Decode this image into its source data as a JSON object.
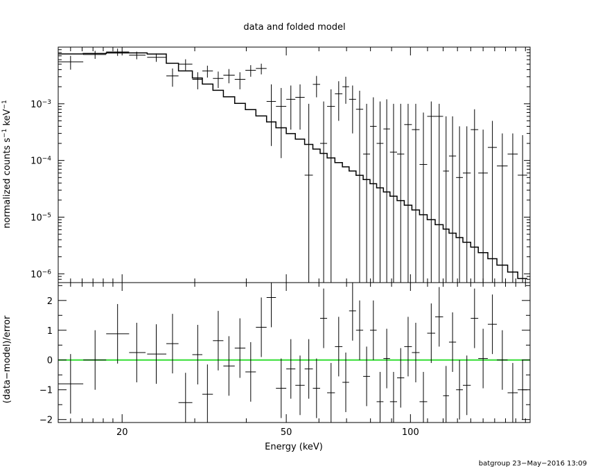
{
  "chart_data": [
    {
      "panel": "top",
      "type": "line",
      "title": "data and folded model",
      "ylabel": "normalized counts s^-1 keV^-1",
      "yscale": "log",
      "xscale": "log",
      "xlim": [
        14,
        195
      ],
      "ylim": [
        7e-07,
        0.01
      ],
      "yticks": [
        1e-06,
        1e-05,
        0.0001,
        0.001
      ],
      "ytick_labels": [
        {
          "base": "10",
          "exp": "−6"
        },
        {
          "base": "10",
          "exp": "−5"
        },
        {
          "base": "10",
          "exp": "−4"
        },
        {
          "base": "10",
          "exp": "−3"
        }
      ],
      "data_points": [
        {
          "x": 15.0,
          "xlo": 14.0,
          "xhi": 16.1,
          "y": 0.0055,
          "ylo": 0.004,
          "yhi": 0.007
        },
        {
          "x": 17.2,
          "xlo": 16.1,
          "xhi": 18.3,
          "y": 0.0074,
          "ylo": 0.0062,
          "yhi": 0.0086
        },
        {
          "x": 19.5,
          "xlo": 18.3,
          "xhi": 20.8,
          "y": 0.0082,
          "ylo": 0.007,
          "yhi": 0.0094
        },
        {
          "x": 21.7,
          "xlo": 20.8,
          "xhi": 22.8,
          "y": 0.0072,
          "ylo": 0.0061,
          "yhi": 0.0083
        },
        {
          "x": 24.2,
          "xlo": 23.0,
          "xhi": 25.6,
          "y": 0.0066,
          "ylo": 0.0055,
          "yhi": 0.0077
        },
        {
          "x": 26.5,
          "xlo": 25.6,
          "xhi": 27.4,
          "y": 0.0031,
          "ylo": 0.002,
          "yhi": 0.0042
        },
        {
          "x": 28.5,
          "xlo": 27.4,
          "xhi": 29.6,
          "y": 0.005,
          "ylo": 0.0039,
          "yhi": 0.0061
        },
        {
          "x": 30.5,
          "xlo": 29.6,
          "xhi": 31.3,
          "y": 0.0027,
          "ylo": 0.0018,
          "yhi": 0.0036
        },
        {
          "x": 32.2,
          "xlo": 31.3,
          "xhi": 33.2,
          "y": 0.0038,
          "ylo": 0.0029,
          "yhi": 0.0047
        },
        {
          "x": 34.2,
          "xlo": 33.2,
          "xhi": 35.2,
          "y": 0.0028,
          "ylo": 0.0019,
          "yhi": 0.0037
        },
        {
          "x": 36.3,
          "xlo": 35.2,
          "xhi": 37.5,
          "y": 0.0032,
          "ylo": 0.0023,
          "yhi": 0.0041
        },
        {
          "x": 38.6,
          "xlo": 37.5,
          "xhi": 39.8,
          "y": 0.0027,
          "ylo": 0.0018,
          "yhi": 0.0036
        },
        {
          "x": 41.0,
          "xlo": 39.8,
          "xhi": 42.2,
          "y": 0.0039,
          "ylo": 0.003,
          "yhi": 0.0048
        },
        {
          "x": 43.5,
          "xlo": 42.2,
          "xhi": 44.8,
          "y": 0.0042,
          "ylo": 0.0033,
          "yhi": 0.0051
        },
        {
          "x": 46.0,
          "xlo": 44.8,
          "xhi": 47.2,
          "y": 0.0011,
          "ylo": 0.00018,
          "yhi": 0.0022
        },
        {
          "x": 48.6,
          "xlo": 47.2,
          "xhi": 50.0,
          "y": 0.0009,
          "ylo": 0.00011,
          "yhi": 0.0019
        },
        {
          "x": 51.3,
          "xlo": 50.0,
          "xhi": 52.6,
          "y": 0.0012,
          "ylo": 0.00035,
          "yhi": 0.0021
        },
        {
          "x": 54.0,
          "xlo": 52.6,
          "xhi": 55.4,
          "y": 0.0013,
          "ylo": 0.00035,
          "yhi": 0.0022
        },
        {
          "x": 56.7,
          "xlo": 55.4,
          "xhi": 58.0,
          "y": 5.5e-05,
          "ylo": 7e-07,
          "yhi": 0.001
        },
        {
          "x": 59.2,
          "xlo": 58.0,
          "xhi": 60.4,
          "y": 0.0022,
          "ylo": 0.0013,
          "yhi": 0.0031
        },
        {
          "x": 61.6,
          "xlo": 60.4,
          "xhi": 62.8,
          "y": 0.0002,
          "ylo": 7e-07,
          "yhi": 0.0011
        },
        {
          "x": 64.2,
          "xlo": 62.8,
          "xhi": 65.6,
          "y": 0.0009,
          "ylo": 7e-07,
          "yhi": 0.0018
        },
        {
          "x": 67.0,
          "xlo": 65.6,
          "xhi": 68.4,
          "y": 0.0015,
          "ylo": 0.0005,
          "yhi": 0.0025
        },
        {
          "x": 69.7,
          "xlo": 68.4,
          "xhi": 71.0,
          "y": 0.002,
          "ylo": 0.001,
          "yhi": 0.003
        },
        {
          "x": 72.4,
          "xlo": 71.0,
          "xhi": 73.8,
          "y": 0.0012,
          "ylo": 0.0003,
          "yhi": 0.0021
        },
        {
          "x": 75.3,
          "xlo": 73.8,
          "xhi": 76.8,
          "y": 0.0008,
          "ylo": 7e-07,
          "yhi": 0.0017
        },
        {
          "x": 78.3,
          "xlo": 76.8,
          "xhi": 79.8,
          "y": 0.00013,
          "ylo": 7e-07,
          "yhi": 0.001
        },
        {
          "x": 81.3,
          "xlo": 79.8,
          "xhi": 82.8,
          "y": 0.0004,
          "ylo": 7e-07,
          "yhi": 0.0013
        },
        {
          "x": 84.4,
          "xlo": 82.8,
          "xhi": 86.0,
          "y": 0.0002,
          "ylo": 7e-07,
          "yhi": 0.0011
        },
        {
          "x": 87.6,
          "xlo": 86.0,
          "xhi": 89.2,
          "y": 0.00036,
          "ylo": 7e-07,
          "yhi": 0.0012
        },
        {
          "x": 91.0,
          "xlo": 89.2,
          "xhi": 92.8,
          "y": 0.00014,
          "ylo": 7e-07,
          "yhi": 0.001
        },
        {
          "x": 94.7,
          "xlo": 92.8,
          "xhi": 96.6,
          "y": 0.00013,
          "ylo": 7e-07,
          "yhi": 0.001
        },
        {
          "x": 98.7,
          "xlo": 96.6,
          "xhi": 100.8,
          "y": 0.00043,
          "ylo": 7e-07,
          "yhi": 0.001
        },
        {
          "x": 103.0,
          "xlo": 100.8,
          "xhi": 105.2,
          "y": 0.00035,
          "ylo": 7e-07,
          "yhi": 0.001
        },
        {
          "x": 107.5,
          "xlo": 105.2,
          "xhi": 109.8,
          "y": 8.5e-05,
          "ylo": 7e-07,
          "yhi": 0.0007
        },
        {
          "x": 112.3,
          "xlo": 109.8,
          "xhi": 114.8,
          "y": 0.0006,
          "ylo": 7e-07,
          "yhi": 0.0011
        },
        {
          "x": 117.4,
          "xlo": 114.8,
          "xhi": 120.0,
          "y": 0.0006,
          "ylo": 7e-07,
          "yhi": 0.001
        },
        {
          "x": 122.0,
          "xlo": 120.0,
          "xhi": 124.0,
          "y": 6.5e-05,
          "ylo": 7e-07,
          "yhi": 0.0006
        },
        {
          "x": 126.5,
          "xlo": 124.0,
          "xhi": 129.0,
          "y": 0.00012,
          "ylo": 7e-07,
          "yhi": 0.0006
        },
        {
          "x": 131.5,
          "xlo": 129.0,
          "xhi": 134.0,
          "y": 5e-05,
          "ylo": 7e-07,
          "yhi": 0.0004
        },
        {
          "x": 137.0,
          "xlo": 134.0,
          "xhi": 140.0,
          "y": 6e-05,
          "ylo": 7e-07,
          "yhi": 0.0004
        },
        {
          "x": 143.0,
          "xlo": 140.0,
          "xhi": 146.0,
          "y": 0.00035,
          "ylo": 7e-07,
          "yhi": 0.0008
        },
        {
          "x": 150.0,
          "xlo": 146.0,
          "xhi": 154.0,
          "y": 6e-05,
          "ylo": 7e-07,
          "yhi": 0.00035
        },
        {
          "x": 158.0,
          "xlo": 154.0,
          "xhi": 162.0,
          "y": 0.00017,
          "ylo": 7e-07,
          "yhi": 0.0005
        },
        {
          "x": 167.0,
          "xlo": 162.0,
          "xhi": 172.0,
          "y": 8e-05,
          "ylo": 7e-07,
          "yhi": 0.0003
        },
        {
          "x": 177.0,
          "xlo": 172.0,
          "xhi": 182.0,
          "y": 0.00013,
          "ylo": 7e-07,
          "yhi": 0.0003
        },
        {
          "x": 187.0,
          "xlo": 182.0,
          "xhi": 192.0,
          "y": 5.5e-05,
          "ylo": 7e-07,
          "yhi": 0.00028
        }
      ],
      "model": {
        "norm_at_20keV": 0.0079,
        "peak_keV": 19.5,
        "low_index": 0.5,
        "high_index": 4.2,
        "cutoff_keV": 24.0
      }
    },
    {
      "panel": "bottom",
      "type": "scatter",
      "xlabel": "Energy (keV)",
      "ylabel": "(data−model)/error",
      "xscale": "log",
      "xlim": [
        14,
        195
      ],
      "ylim": [
        -2.1,
        2.6
      ],
      "yticks": [
        -2,
        -1,
        0,
        1,
        2
      ],
      "ytick_labels": [
        "−2",
        "−1",
        "0",
        "1",
        "2"
      ],
      "xticks": [
        20,
        50,
        100
      ],
      "xtick_labels": [
        "20",
        "50",
        "100"
      ],
      "zero_line_color": "#33dd33",
      "residuals": [
        {
          "x": 15.0,
          "xlo": 14.0,
          "xhi": 16.1,
          "y": -0.8
        },
        {
          "x": 17.2,
          "xlo": 16.1,
          "xhi": 18.3,
          "y": 0.0
        },
        {
          "x": 19.5,
          "xlo": 18.3,
          "xhi": 20.8,
          "y": 0.88
        },
        {
          "x": 21.7,
          "xlo": 20.8,
          "xhi": 22.8,
          "y": 0.25
        },
        {
          "x": 24.2,
          "xlo": 23.0,
          "xhi": 25.6,
          "y": 0.2
        },
        {
          "x": 26.5,
          "xlo": 25.6,
          "xhi": 27.4,
          "y": 0.55
        },
        {
          "x": 28.5,
          "xlo": 27.4,
          "xhi": 29.6,
          "y": -1.43
        },
        {
          "x": 30.5,
          "xlo": 29.6,
          "xhi": 31.3,
          "y": 0.18
        },
        {
          "x": 32.2,
          "xlo": 31.3,
          "xhi": 33.2,
          "y": -1.15
        },
        {
          "x": 34.2,
          "xlo": 33.2,
          "xhi": 35.2,
          "y": 0.65
        },
        {
          "x": 36.3,
          "xlo": 35.2,
          "xhi": 37.5,
          "y": -0.2
        },
        {
          "x": 38.6,
          "xlo": 37.5,
          "xhi": 39.8,
          "y": 0.4
        },
        {
          "x": 41.0,
          "xlo": 39.8,
          "xhi": 42.2,
          "y": -0.4
        },
        {
          "x": 43.5,
          "xlo": 42.2,
          "xhi": 44.8,
          "y": 1.1
        },
        {
          "x": 46.0,
          "xlo": 44.8,
          "xhi": 47.2,
          "y": 2.1
        },
        {
          "x": 48.6,
          "xlo": 47.2,
          "xhi": 50.0,
          "y": -0.95
        },
        {
          "x": 51.3,
          "xlo": 50.0,
          "xhi": 52.6,
          "y": -0.3
        },
        {
          "x": 54.0,
          "xlo": 52.6,
          "xhi": 55.4,
          "y": -0.85
        },
        {
          "x": 56.7,
          "xlo": 55.4,
          "xhi": 58.0,
          "y": -0.3
        },
        {
          "x": 59.2,
          "xlo": 58.0,
          "xhi": 60.4,
          "y": -0.95
        },
        {
          "x": 61.6,
          "xlo": 60.4,
          "xhi": 62.8,
          "y": 1.4
        },
        {
          "x": 64.2,
          "xlo": 62.8,
          "xhi": 65.6,
          "y": -1.1
        },
        {
          "x": 67.0,
          "xlo": 65.6,
          "xhi": 68.4,
          "y": 0.45
        },
        {
          "x": 69.7,
          "xlo": 68.4,
          "xhi": 71.0,
          "y": -0.75
        },
        {
          "x": 72.4,
          "xlo": 71.0,
          "xhi": 73.8,
          "y": 1.65
        },
        {
          "x": 75.3,
          "xlo": 73.8,
          "xhi": 76.8,
          "y": 1.0
        },
        {
          "x": 78.3,
          "xlo": 76.8,
          "xhi": 79.8,
          "y": -0.55
        },
        {
          "x": 81.3,
          "xlo": 79.8,
          "xhi": 82.8,
          "y": 1.0
        },
        {
          "x": 84.4,
          "xlo": 82.8,
          "xhi": 86.0,
          "y": -1.4
        },
        {
          "x": 87.6,
          "xlo": 86.0,
          "xhi": 89.2,
          "y": 0.05
        },
        {
          "x": 91.0,
          "xlo": 89.2,
          "xhi": 92.8,
          "y": -1.4
        },
        {
          "x": 94.7,
          "xlo": 92.8,
          "xhi": 96.6,
          "y": -0.6
        },
        {
          "x": 98.7,
          "xlo": 96.6,
          "xhi": 100.8,
          "y": 0.45
        },
        {
          "x": 103.0,
          "xlo": 100.8,
          "xhi": 105.2,
          "y": 0.25
        },
        {
          "x": 107.5,
          "xlo": 105.2,
          "xhi": 109.8,
          "y": -1.4
        },
        {
          "x": 112.3,
          "xlo": 109.8,
          "xhi": 114.8,
          "y": 0.9
        },
        {
          "x": 117.4,
          "xlo": 114.8,
          "xhi": 120.0,
          "y": 1.45
        },
        {
          "x": 122.0,
          "xlo": 120.0,
          "xhi": 124.0,
          "y": -1.2
        },
        {
          "x": 126.5,
          "xlo": 124.0,
          "xhi": 129.0,
          "y": 0.6
        },
        {
          "x": 131.5,
          "xlo": 129.0,
          "xhi": 134.0,
          "y": -1.0
        },
        {
          "x": 137.0,
          "xlo": 134.0,
          "xhi": 140.0,
          "y": -0.85
        },
        {
          "x": 143.0,
          "xlo": 140.0,
          "xhi": 146.0,
          "y": 1.4
        },
        {
          "x": 150.0,
          "xlo": 146.0,
          "xhi": 154.0,
          "y": 0.05
        },
        {
          "x": 158.0,
          "xlo": 154.0,
          "xhi": 162.0,
          "y": 1.2
        },
        {
          "x": 167.0,
          "xlo": 162.0,
          "xhi": 172.0,
          "y": 0.0
        },
        {
          "x": 177.0,
          "xlo": 172.0,
          "xhi": 182.0,
          "y": -1.1
        },
        {
          "x": 187.0,
          "xlo": 182.0,
          "xhi": 192.0,
          "y": -1.0
        }
      ]
    }
  ],
  "footer": "batgroup 23−May−2016 13:09"
}
